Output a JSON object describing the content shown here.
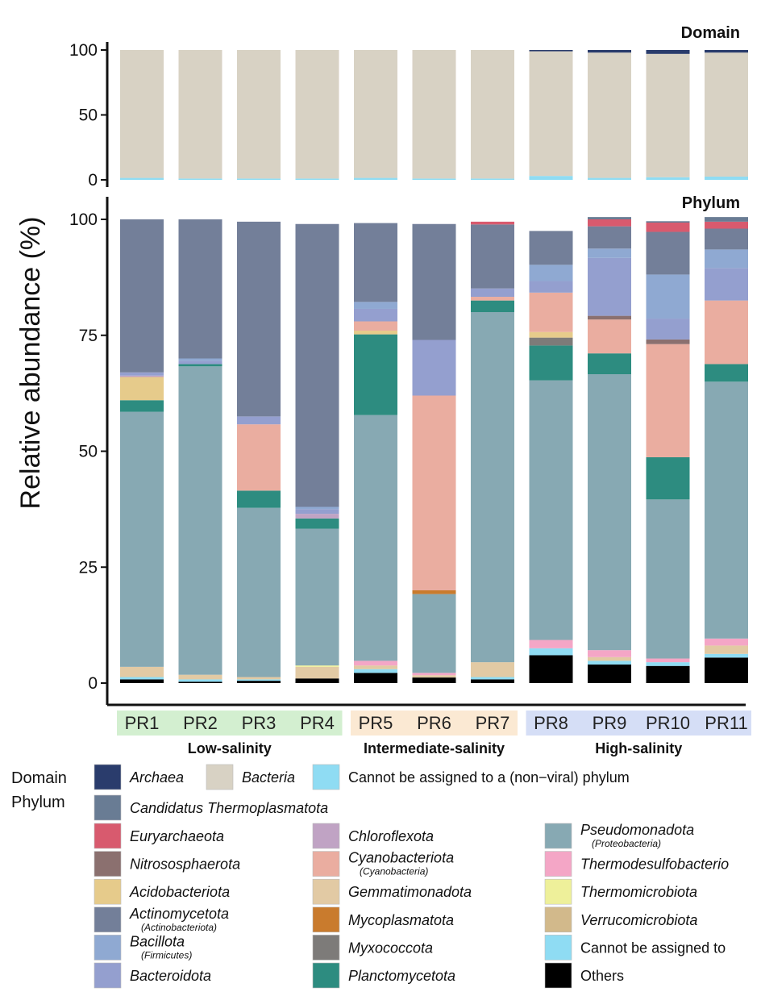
{
  "chart_data": [
    {
      "type": "stacked-bar",
      "panel": "domain",
      "title": "Domain",
      "ylabel": "Relative abundance (%)",
      "ylim": [
        0,
        100
      ],
      "yticks": [
        "0",
        "50",
        "100"
      ],
      "categories": [
        "PR1",
        "PR2",
        "PR3",
        "PR4",
        "PR5",
        "PR6",
        "PR7",
        "PR8",
        "PR9",
        "PR10",
        "PR11"
      ],
      "series": [
        {
          "name": "Cannot be assigned to a (non−viral) phylum",
          "color": "#8fdcf3",
          "values": [
            1.5,
            1.0,
            1.0,
            1.0,
            1.5,
            1.0,
            1.0,
            3.0,
            1.5,
            2.0,
            2.5
          ]
        },
        {
          "name": "Bacteria",
          "color": "#d8d2c4",
          "values": [
            98.5,
            99.0,
            99.0,
            99.0,
            98.5,
            99.0,
            99.0,
            96.0,
            96.5,
            95.0,
            95.5
          ]
        },
        {
          "name": "Archaea",
          "color": "#2a3c6c",
          "values": [
            0,
            0,
            0,
            0,
            0,
            0,
            0,
            1.0,
            2.0,
            3.0,
            2.0
          ]
        }
      ]
    },
    {
      "type": "stacked-bar",
      "panel": "phylum",
      "title": "Phylum",
      "ylim": [
        0,
        100
      ],
      "yticks": [
        "0",
        "25",
        "50",
        "75",
        "100"
      ],
      "categories": [
        "PR1",
        "PR2",
        "PR3",
        "PR4",
        "PR5",
        "PR6",
        "PR7",
        "PR8",
        "PR9",
        "PR10",
        "PR11"
      ],
      "series": [
        {
          "name": "Others",
          "color": "#000000",
          "values": [
            0.8,
            0.3,
            0.5,
            1.0,
            2.2,
            1.2,
            0.8,
            6.0,
            4.0,
            3.7,
            5.5
          ]
        },
        {
          "name": "Cannot be assigned to",
          "color": "#8fdcf3",
          "values": [
            0.5,
            0.5,
            0.3,
            0,
            0.8,
            0,
            0.5,
            1.5,
            0.8,
            0.8,
            0.8
          ]
        },
        {
          "name": "Verrucomicrobiota",
          "color": "#d2b98b",
          "values": [
            0,
            0,
            0,
            0,
            0,
            0,
            0,
            0,
            0,
            0,
            0
          ]
        },
        {
          "name": "Gemmatimonadota",
          "color": "#e2caa4",
          "values": [
            2.2,
            1.0,
            0.5,
            2.5,
            0.8,
            0.5,
            3.2,
            0,
            0.8,
            0,
            1.8
          ]
        },
        {
          "name": "Thermomicrobiota",
          "color": "#eef09a",
          "values": [
            0,
            0,
            0,
            0.3,
            0,
            0,
            0,
            0,
            0,
            0,
            0
          ]
        },
        {
          "name": "Thermodesulfobacteriota",
          "color": "#f4a6c6",
          "values": [
            0,
            0,
            0,
            0,
            1.0,
            0.5,
            0,
            1.8,
            1.5,
            0.8,
            1.5
          ]
        },
        {
          "name": "Pseudomonadota",
          "color": "#87a9b3",
          "values": [
            55.0,
            66.5,
            36.5,
            29.5,
            53.0,
            17.0,
            75.5,
            56.0,
            59.5,
            34.3,
            55.4
          ]
        },
        {
          "name": "Planctomycetota",
          "color": "#2d8c80",
          "values": [
            2.5,
            0.5,
            3.7,
            2.2,
            17.4,
            0,
            2.5,
            7.5,
            4.5,
            9.1,
            3.8
          ]
        },
        {
          "name": "Mycoplasmatota",
          "color": "#c97b2d",
          "values": [
            0,
            0,
            0,
            0,
            0,
            0.8,
            0,
            0,
            0,
            0,
            0
          ]
        },
        {
          "name": "Myxococcota",
          "color": "#7d7b79",
          "values": [
            0,
            0,
            0,
            0,
            0,
            0,
            0,
            1.7,
            0,
            0,
            0
          ]
        },
        {
          "name": "Acidobacteriota",
          "color": "#e6cb8b",
          "values": [
            5.0,
            0,
            0,
            0,
            0.8,
            0,
            0,
            1.2,
            0,
            0,
            0
          ]
        },
        {
          "name": "Cyanobacteriota",
          "color": "#eaada0",
          "values": [
            0,
            0,
            14.3,
            0,
            2.0,
            42.0,
            0.8,
            8.5,
            7.3,
            24.4,
            13.7
          ]
        },
        {
          "name": "Chloroflexota",
          "color": "#c0a3c4",
          "values": [
            0.3,
            0,
            0,
            1.0,
            0,
            0,
            0,
            0,
            0,
            0,
            0
          ]
        },
        {
          "name": "Nitrososphaerota",
          "color": "#8b706f",
          "values": [
            0,
            0,
            0,
            0,
            0,
            0,
            0,
            0,
            0.8,
            1.0,
            0
          ]
        },
        {
          "name": "Bacteroidota",
          "color": "#949fcf",
          "values": [
            0.7,
            0.7,
            1.7,
            1.0,
            2.7,
            12.0,
            1.8,
            2.5,
            12.5,
            4.5,
            7.0
          ]
        },
        {
          "name": "Bacillota",
          "color": "#8fa9d2",
          "values": [
            0,
            0.5,
            0,
            0.5,
            1.5,
            0,
            0,
            3.5,
            2.0,
            9.5,
            4.0
          ]
        },
        {
          "name": "Actinomycetota",
          "color": "#737f99",
          "values": [
            33.0,
            30.0,
            42.0,
            61.0,
            17.0,
            25.0,
            13.8,
            7.3,
            4.8,
            9.2,
            4.5
          ]
        },
        {
          "name": "Euryarchaeota",
          "color": "#d85a6e",
          "values": [
            0,
            0,
            0,
            0,
            0,
            0,
            0.6,
            0,
            1.5,
            2.0,
            1.5
          ]
        },
        {
          "name": "Candidatus Thermoplasmatota",
          "color": "#697c94",
          "values": [
            0,
            0,
            0,
            0,
            0,
            0,
            0,
            0,
            0.5,
            0.3,
            1.0
          ]
        }
      ]
    }
  ],
  "axis": {
    "ylabel": "Relative abundance (%)",
    "samples": [
      "PR1",
      "PR2",
      "PR3",
      "PR4",
      "PR5",
      "PR6",
      "PR7",
      "PR8",
      "PR9",
      "PR10",
      "PR11"
    ],
    "groups": [
      {
        "label": "Low-salinity",
        "color": "#d3efd0"
      },
      {
        "label": "Intermediate-salinity",
        "color": "#fbe9d3"
      },
      {
        "label": "High-salinity",
        "color": "#d5def6"
      }
    ]
  },
  "legend": {
    "domain_head": "Domain",
    "phylum_head": "Phylum",
    "domain_items": [
      {
        "label": "Archaea",
        "color": "#2a3c6c",
        "italic": true
      },
      {
        "label": "Bacteria",
        "color": "#d8d2c4",
        "italic": true
      },
      {
        "label": "Cannot be assigned to a (non−viral) phylum",
        "color": "#8fdcf3",
        "italic": false
      }
    ],
    "wide_item": {
      "label": "Candidatus Thermoplasmatota",
      "color": "#697c94"
    },
    "columns": [
      [
        {
          "label": "Euryarchaeota",
          "color": "#d85a6e"
        },
        {
          "label": "Nitrososphaerota",
          "color": "#8b706f"
        },
        {
          "label": "Acidobacteriota",
          "color": "#e6cb8b"
        },
        {
          "label": "Actinomycetota",
          "sub": "(Actinobacteriota)",
          "color": "#737f99"
        },
        {
          "label": "Bacillota",
          "sub": "(Firmicutes)",
          "color": "#8fa9d2"
        },
        {
          "label": "Bacteroidota",
          "color": "#949fcf"
        }
      ],
      [
        {
          "label": "Chloroflexota",
          "color": "#c0a3c4"
        },
        {
          "label": "Cyanobacteriota",
          "sub": "(Cyanobacteria)",
          "color": "#eaada0"
        },
        {
          "label": "Gemmatimonadota",
          "color": "#e2caa4"
        },
        {
          "label": "Mycoplasmatota",
          "color": "#c97b2d"
        },
        {
          "label": "Myxococcota",
          "color": "#7d7b79"
        },
        {
          "label": "Planctomycetota",
          "color": "#2d8c80"
        }
      ],
      [
        {
          "label": "Pseudomonadota",
          "sub": "(Proteobacteria)",
          "color": "#87a9b3"
        },
        {
          "label": "Thermodesulfobacterio",
          "color": "#f4a6c6"
        },
        {
          "label": "Thermomicrobiota",
          "color": "#eef09a"
        },
        {
          "label": "Verrucomicrobiota",
          "color": "#d2b98b"
        },
        {
          "label": "Cannot be assigned to",
          "color": "#8fdcf3",
          "italic": false
        },
        {
          "label": "Others",
          "color": "#000000",
          "italic": false
        }
      ]
    ]
  }
}
